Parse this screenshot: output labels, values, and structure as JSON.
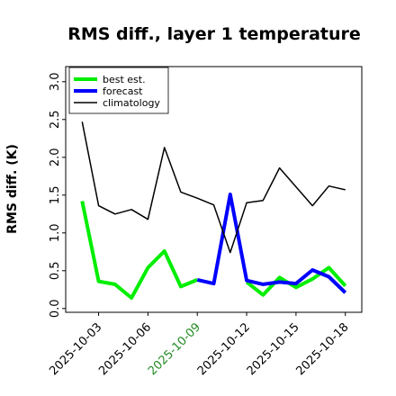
{
  "chart_data": {
    "type": "line",
    "title": "RMS diff., layer 1 temperature",
    "xlabel": "",
    "ylabel": "RMS diff. (K)",
    "ylim": [
      -0.05,
      3.2
    ],
    "xlim": [
      "2025-10-01",
      "2025-10-19"
    ],
    "yticks": [
      "0.0",
      "0.5",
      "1.0",
      "1.5",
      "2.0",
      "2.5",
      "3.0"
    ],
    "xticks": [
      "2025-10-03",
      "2025-10-06",
      "2025-10-09",
      "2025-10-12",
      "2025-10-15",
      "2025-10-18"
    ],
    "highlighted_tick": "2025-10-09",
    "highlight_color": "#228B22",
    "grid": false,
    "legend_position": "top-left",
    "x": [
      "2025-10-02",
      "2025-10-03",
      "2025-10-04",
      "2025-10-05",
      "2025-10-06",
      "2025-10-07",
      "2025-10-08",
      "2025-10-09",
      "2025-10-10",
      "2025-10-11",
      "2025-10-12",
      "2025-10-13",
      "2025-10-14",
      "2025-10-15",
      "2025-10-16",
      "2025-10-17",
      "2025-10-18"
    ],
    "series": [
      {
        "name": "best est.",
        "color": "#00ee00",
        "values": [
          1.42,
          0.36,
          0.32,
          0.14,
          0.54,
          0.76,
          0.29,
          0.38,
          null,
          null,
          0.35,
          0.18,
          0.41,
          0.28,
          0.39,
          0.54,
          0.3
        ]
      },
      {
        "name": "forecast",
        "color": "#0000ff",
        "values": [
          null,
          null,
          null,
          null,
          null,
          null,
          null,
          0.38,
          0.33,
          1.51,
          0.37,
          0.32,
          0.35,
          0.33,
          0.51,
          0.42,
          0.21
        ]
      },
      {
        "name": "climatology",
        "color": "#000000",
        "values": [
          2.47,
          1.36,
          1.25,
          1.31,
          1.18,
          2.13,
          1.54,
          1.46,
          1.37,
          0.74,
          1.4,
          1.43,
          1.86,
          1.61,
          1.36,
          1.62,
          1.57
        ]
      }
    ]
  }
}
